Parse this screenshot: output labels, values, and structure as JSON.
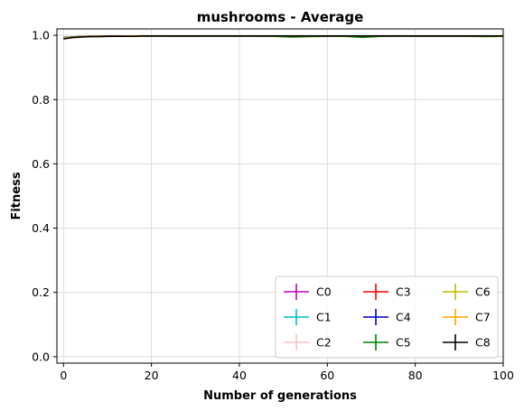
{
  "chart_data": {
    "type": "line",
    "title": "mushrooms - Average",
    "xlabel": "Number of generations",
    "ylabel": "Fitness",
    "xlim": [
      -1.5,
      100
    ],
    "ylim": [
      -0.02,
      1.02
    ],
    "xticks": [
      0,
      20,
      40,
      60,
      80,
      100
    ],
    "yticks": [
      0.0,
      0.2,
      0.4,
      0.6,
      0.8,
      1.0
    ],
    "xtick_labels": [
      "0",
      "20",
      "40",
      "60",
      "80",
      "100"
    ],
    "ytick_labels": [
      "0.0",
      "0.2",
      "0.4",
      "0.6",
      "0.8",
      "1.0"
    ],
    "grid": true,
    "legend": {
      "placement": "lower-right",
      "columns": 3
    },
    "x": [
      0,
      2,
      4,
      6,
      8,
      10,
      12,
      14,
      16,
      18,
      20,
      24,
      28,
      32,
      36,
      40,
      44,
      48,
      52,
      56,
      60,
      64,
      68,
      72,
      76,
      80,
      84,
      88,
      92,
      96,
      100
    ],
    "series": [
      {
        "name": "C0",
        "color": "#bf00bf",
        "values": [
          0.99,
          0.993,
          0.995,
          0.996,
          0.996,
          0.997,
          0.997,
          0.997,
          0.998,
          0.998,
          0.998,
          0.998,
          0.998,
          0.998,
          0.998,
          0.998,
          0.998,
          0.998,
          0.998,
          0.998,
          0.998,
          0.998,
          0.998,
          0.998,
          0.998,
          0.998,
          0.998,
          0.998,
          0.998,
          0.998,
          0.998
        ]
      },
      {
        "name": "C1",
        "color": "#00bfbf",
        "values": [
          0.991,
          0.994,
          0.996,
          0.996,
          0.997,
          0.997,
          0.997,
          0.998,
          0.998,
          0.998,
          0.998,
          0.998,
          0.998,
          0.998,
          0.998,
          0.998,
          0.998,
          0.998,
          0.998,
          0.998,
          0.998,
          0.998,
          0.998,
          0.998,
          0.998,
          0.998,
          0.998,
          0.998,
          0.998,
          0.998,
          0.998
        ]
      },
      {
        "name": "C2",
        "color": "#ffc0cb",
        "values": [
          0.988,
          0.992,
          0.994,
          0.995,
          0.996,
          0.996,
          0.997,
          0.997,
          0.997,
          0.998,
          0.998,
          0.998,
          0.998,
          0.998,
          0.998,
          0.998,
          0.998,
          0.998,
          0.998,
          0.998,
          0.998,
          0.998,
          0.998,
          0.998,
          0.998,
          0.998,
          0.998,
          0.998,
          0.998,
          0.998,
          0.998
        ]
      },
      {
        "name": "C3",
        "color": "#ff0000",
        "values": [
          0.992,
          0.995,
          0.996,
          0.997,
          0.997,
          0.997,
          0.998,
          0.998,
          0.998,
          0.998,
          0.998,
          0.998,
          0.998,
          0.998,
          0.998,
          0.998,
          0.998,
          0.998,
          0.998,
          0.998,
          0.998,
          0.998,
          0.998,
          0.998,
          0.998,
          0.998,
          0.998,
          0.998,
          0.998,
          0.998,
          0.998
        ]
      },
      {
        "name": "C4",
        "color": "#0000bf",
        "values": [
          0.993,
          0.995,
          0.996,
          0.997,
          0.997,
          0.997,
          0.997,
          0.998,
          0.998,
          0.998,
          0.998,
          0.998,
          0.998,
          0.998,
          0.998,
          0.998,
          0.998,
          0.998,
          0.998,
          0.998,
          0.998,
          0.998,
          0.998,
          0.998,
          0.998,
          0.998,
          0.998,
          0.998,
          0.998,
          0.998,
          0.998
        ]
      },
      {
        "name": "C5",
        "color": "#008000",
        "values": [
          0.992,
          0.995,
          0.996,
          0.996,
          0.997,
          0.997,
          0.997,
          0.997,
          0.998,
          0.998,
          0.998,
          0.998,
          0.997,
          0.998,
          0.998,
          0.998,
          0.998,
          0.997,
          0.995,
          0.996,
          0.997,
          0.997,
          0.994,
          0.997,
          0.998,
          0.998,
          0.997,
          0.998,
          0.997,
          0.996,
          0.997
        ]
      },
      {
        "name": "C6",
        "color": "#bfbf00",
        "values": [
          0.992,
          0.994,
          0.996,
          0.996,
          0.997,
          0.997,
          0.997,
          0.998,
          0.998,
          0.998,
          0.998,
          0.998,
          0.998,
          0.998,
          0.998,
          0.998,
          0.998,
          0.998,
          0.998,
          0.998,
          0.998,
          0.998,
          0.998,
          0.998,
          0.998,
          0.998,
          0.998,
          0.998,
          0.998,
          0.998,
          0.998
        ]
      },
      {
        "name": "C7",
        "color": "#ffa500",
        "values": [
          0.991,
          0.994,
          0.995,
          0.996,
          0.996,
          0.997,
          0.997,
          0.997,
          0.998,
          0.998,
          0.998,
          0.998,
          0.998,
          0.998,
          0.998,
          0.998,
          0.998,
          0.998,
          0.998,
          0.998,
          0.998,
          0.998,
          0.998,
          0.998,
          0.998,
          0.998,
          0.998,
          0.998,
          0.998,
          0.998,
          0.998
        ]
      },
      {
        "name": "C8",
        "color": "#000000",
        "values": [
          0.989,
          0.993,
          0.995,
          0.996,
          0.996,
          0.997,
          0.997,
          0.997,
          0.997,
          0.998,
          0.998,
          0.998,
          0.998,
          0.998,
          0.998,
          0.998,
          0.998,
          0.998,
          0.998,
          0.998,
          0.998,
          0.998,
          0.998,
          0.998,
          0.998,
          0.998,
          0.998,
          0.998,
          0.998,
          0.998,
          0.998
        ]
      }
    ]
  }
}
